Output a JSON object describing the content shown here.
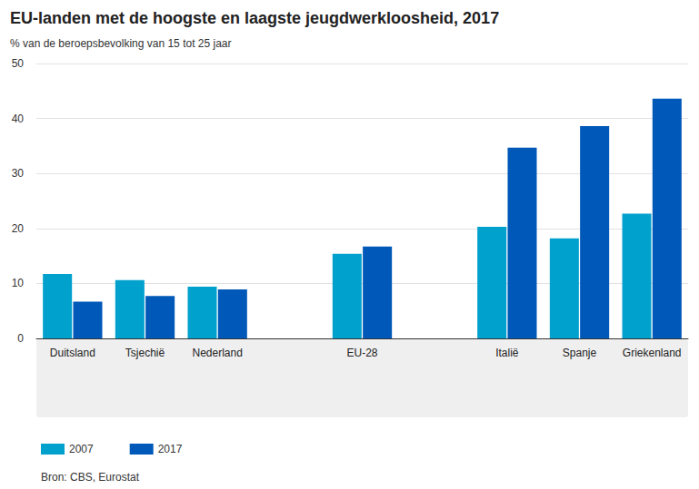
{
  "chart_data": {
    "type": "bar",
    "title": "EU-landen met de hoogste en laagste jeugdwerkloosheid, 2017",
    "subtitle": "% van de beroepsbevolking van 15 tot 25 jaar",
    "source": "Bron: CBS, Eurostat",
    "categories": [
      "Duitsland",
      "Tsjechië",
      "Nederland",
      null,
      "EU-28",
      null,
      "Italië",
      "Spanje",
      "Griekenland"
    ],
    "series": [
      {
        "name": "2007",
        "color": "#00a1cd",
        "values": [
          11.7,
          10.6,
          9.4,
          null,
          15.4,
          null,
          20.3,
          18.2,
          22.7
        ]
      },
      {
        "name": "2017",
        "color": "#0058b8",
        "values": [
          6.7,
          7.7,
          8.9,
          null,
          16.7,
          null,
          34.7,
          38.6,
          43.6
        ]
      }
    ],
    "ylim": [
      0,
      50
    ],
    "yticks": [
      0,
      10,
      20,
      30,
      40,
      50
    ],
    "grid": true,
    "legend": "bottom-left"
  }
}
